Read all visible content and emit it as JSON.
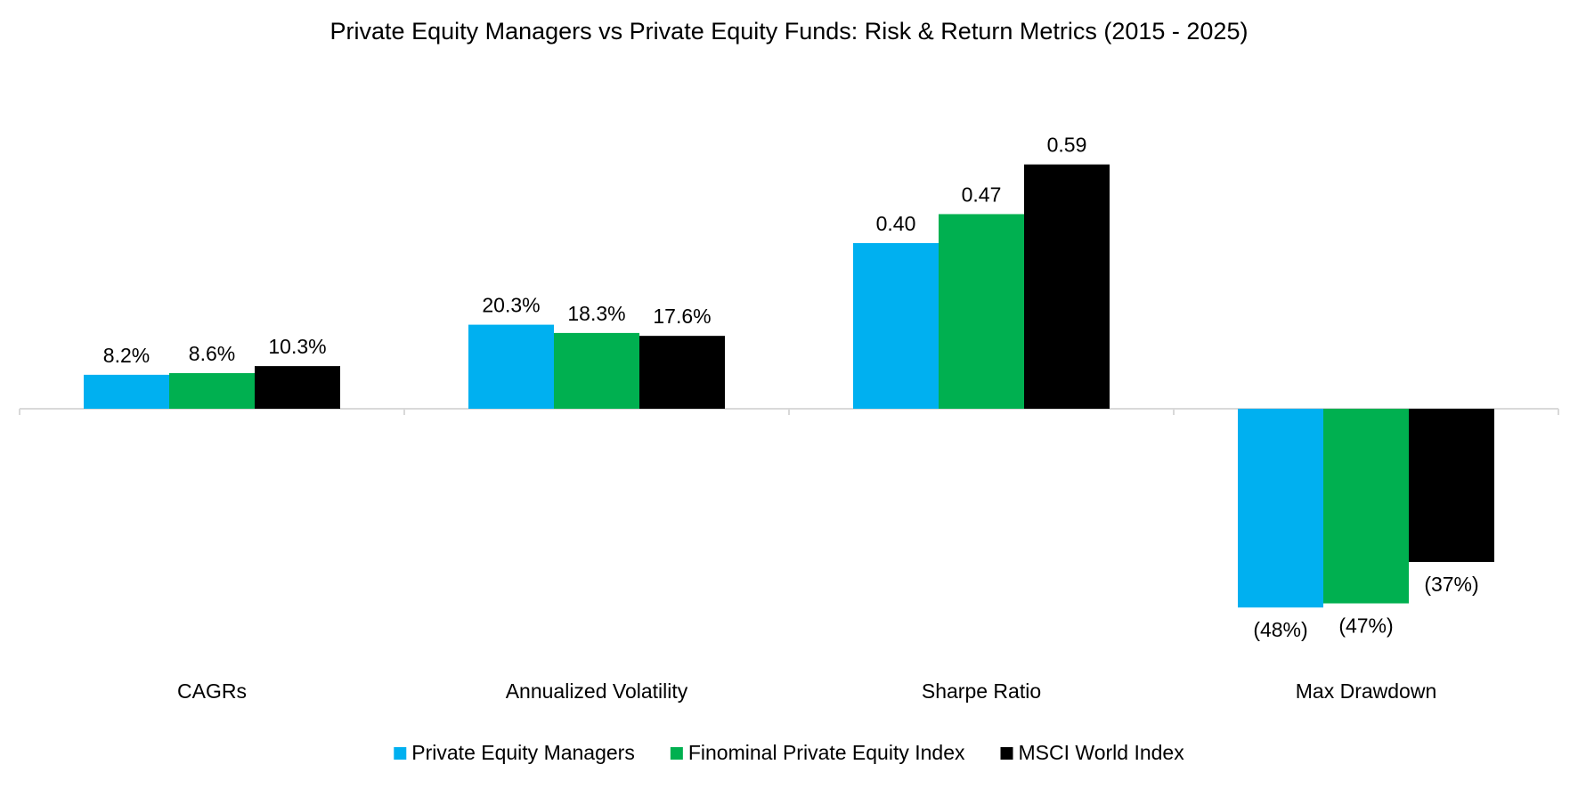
{
  "chart_data": {
    "type": "bar",
    "title": "Private Equity Managers vs Private Equity Funds: Risk & Return Metrics (2015 - 2025)",
    "categories": [
      "CAGRs",
      "Annualized Volatility",
      "Sharpe Ratio",
      "Max Drawdown"
    ],
    "series": [
      {
        "name": "Private Equity Managers",
        "color": "#00B0F0",
        "values": [
          0.082,
          0.203,
          0.4,
          -0.48
        ],
        "labels": [
          "8.2%",
          "20.3%",
          "0.40",
          "(48%)"
        ]
      },
      {
        "name": "Finominal Private Equity Index",
        "color": "#00B050",
        "values": [
          0.086,
          0.183,
          0.47,
          -0.47
        ],
        "labels": [
          "8.6%",
          "18.3%",
          "0.47",
          "(47%)"
        ]
      },
      {
        "name": "MSCI World Index",
        "color": "#000000",
        "values": [
          0.103,
          0.176,
          0.59,
          -0.37
        ],
        "labels": [
          "10.3%",
          "17.6%",
          "0.59",
          "(37%)"
        ]
      }
    ],
    "ylim": [
      -0.6,
      0.72
    ],
    "grid": false,
    "legend": "bottom",
    "axis_color": "#D9D9D9"
  }
}
